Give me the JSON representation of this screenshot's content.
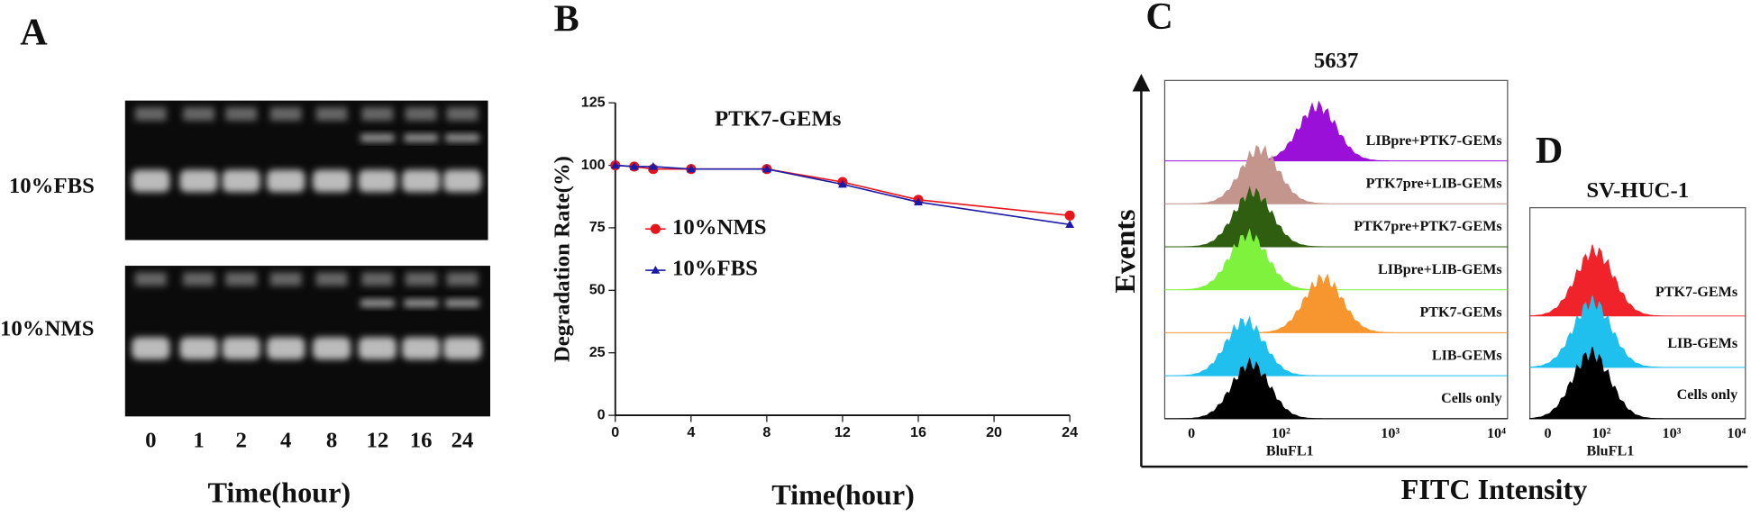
{
  "panel_a": {
    "letter": "A",
    "rows": [
      "10%FBS",
      "10%NMS"
    ],
    "lanes": [
      "0",
      "1",
      "2",
      "4",
      "8",
      "12",
      "16",
      "24"
    ],
    "xlabel": "Time(hour)"
  },
  "chart_data": {
    "letter": "B",
    "type": "line",
    "title": "PTK7-GEMs",
    "x": [
      0,
      1,
      2,
      4,
      8,
      12,
      16,
      24
    ],
    "series": [
      {
        "name": "10%NMS",
        "color": "#e8141b",
        "marker": "circle",
        "values": [
          100,
          99.5,
          98.5,
          98.5,
          98.5,
          93.3,
          86.2,
          79.9
        ]
      },
      {
        "name": "10%FBS",
        "color": "#1a1aa8",
        "marker": "triangle",
        "values": [
          100,
          99.5,
          99.5,
          98.5,
          98.5,
          92.4,
          85.3,
          76.3
        ]
      }
    ],
    "xlim": [
      0,
      24
    ],
    "xticks": [
      0,
      4,
      8,
      12,
      16,
      20,
      24
    ],
    "ylim": [
      0,
      125
    ],
    "yticks": [
      0,
      25,
      50,
      75,
      100,
      125
    ],
    "xlabel": "Time(hour)",
    "ylabel": "Degradation Rate(%)"
  },
  "panel_c": {
    "letter": "C",
    "title": "5637",
    "histograms": [
      {
        "label": "LIBpre+PTK7-GEMs",
        "color": "#9b10d8"
      },
      {
        "label": "PTK7pre+LIB-GEMs",
        "color": "#c4958d"
      },
      {
        "label": "PTK7pre+PTK7-GEMs",
        "color": "#2f5e10"
      },
      {
        "label": "LIBpre+LIB-GEMs",
        "color": "#7ef23c"
      },
      {
        "label": "PTK7-GEMs",
        "color": "#f7962f"
      },
      {
        "label": "LIB-GEMs",
        "color": "#1fbfee"
      },
      {
        "label": "Cells only",
        "color": "#000000"
      }
    ],
    "xticks": [
      "0",
      "10²",
      "10³",
      "10⁴"
    ],
    "xlabel": "BluFL1",
    "ylabel": "Events",
    "axis_title": "FITC Intensity"
  },
  "panel_d": {
    "letter": "D",
    "title": "SV-HUC-1",
    "histograms": [
      {
        "label": "PTK7-GEMs",
        "color": "#f0222a"
      },
      {
        "label": "LIB-GEMs",
        "color": "#1fbfee"
      },
      {
        "label": "Cells only",
        "color": "#000000"
      }
    ],
    "xticks": [
      "0",
      "10²",
      "10³",
      "10⁴"
    ],
    "xlabel": "BluFL1"
  }
}
